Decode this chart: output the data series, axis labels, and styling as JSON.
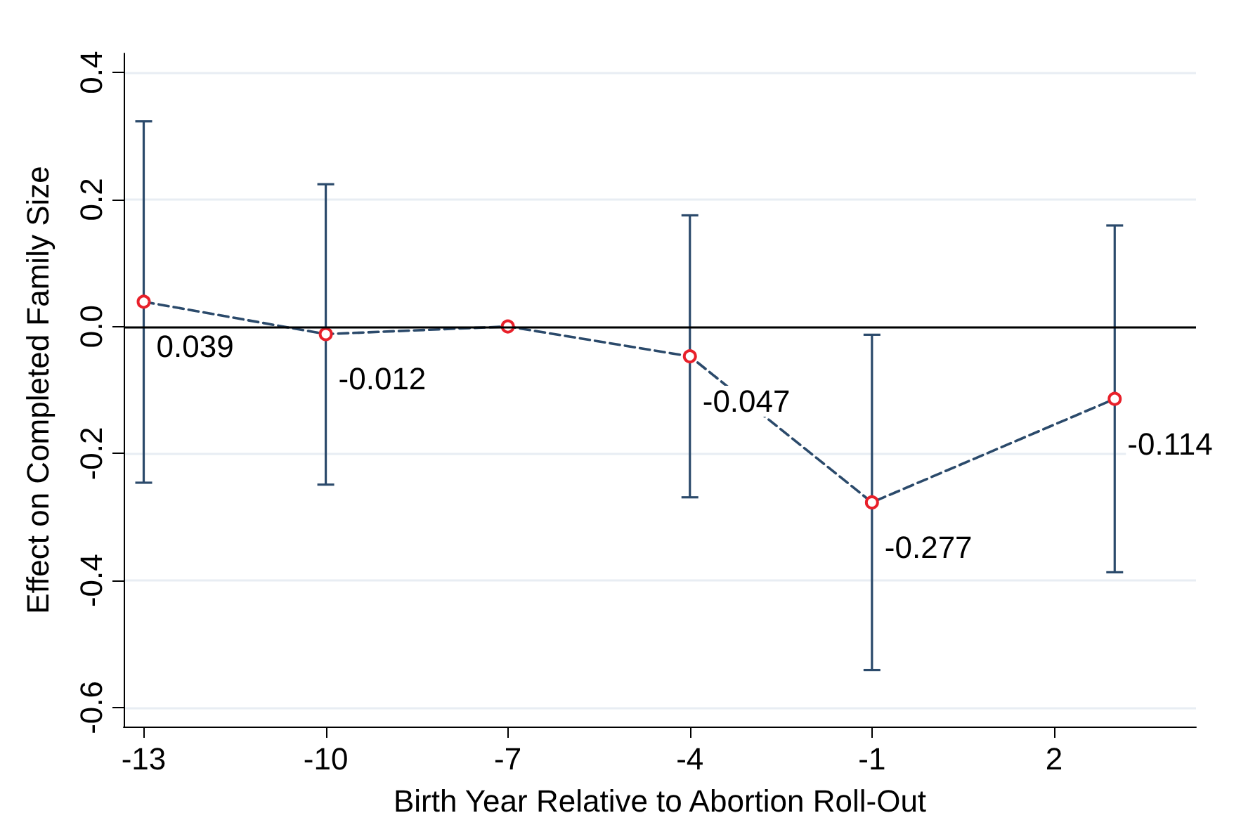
{
  "chart_data": {
    "type": "line",
    "xlabel": "Birth Year Relative to Abortion Roll-Out",
    "ylabel": "Effect on Completed Family Size",
    "x": [
      -13,
      -10,
      -7,
      -4,
      -1,
      3
    ],
    "series": [
      {
        "color": "#2b4a6b",
        "colors": [
          "#e8202a",
          "#e8202a",
          "#e8202a",
          "#e8202a",
          "#e8202a",
          "#e8202a"
        ],
        "values": [
          0.039,
          -0.012,
          0,
          -0.047,
          -0.277,
          -0.114
        ],
        "errors": [
          [
            -0.246,
            0.323
          ],
          [
            -0.249,
            0.224
          ],
          null,
          [
            -0.269,
            0.175
          ],
          [
            -0.541,
            -0.013
          ],
          [
            -0.387,
            0.159
          ]
        ],
        "value_labels": [
          "0.039",
          "-0.012",
          null,
          "-0.047",
          "-0.277",
          "-0.114"
        ]
      }
    ],
    "xlim": [
      -13.33,
      4.34
    ],
    "xticks": [
      -13,
      -10,
      -7,
      -4,
      -1,
      2
    ],
    "ylim": [
      -0.63,
      0.43
    ],
    "yticks": [
      {
        "value": -0.6,
        "label": "-0.6"
      },
      {
        "value": -0.4,
        "label": "-0.4"
      },
      {
        "value": -0.2,
        "label": "-0.2"
      },
      {
        "value": 0,
        "label": "0.0"
      },
      {
        "value": 0.2,
        "label": "0.2"
      },
      {
        "value": 0.4,
        "label": "0.4"
      }
    ],
    "ref_lines": [
      {
        "axis": "y",
        "value": 0,
        "color": "#000000",
        "line_style": "solid"
      }
    ],
    "grid": "y",
    "marker": "circle",
    "line_style": "dashed"
  }
}
